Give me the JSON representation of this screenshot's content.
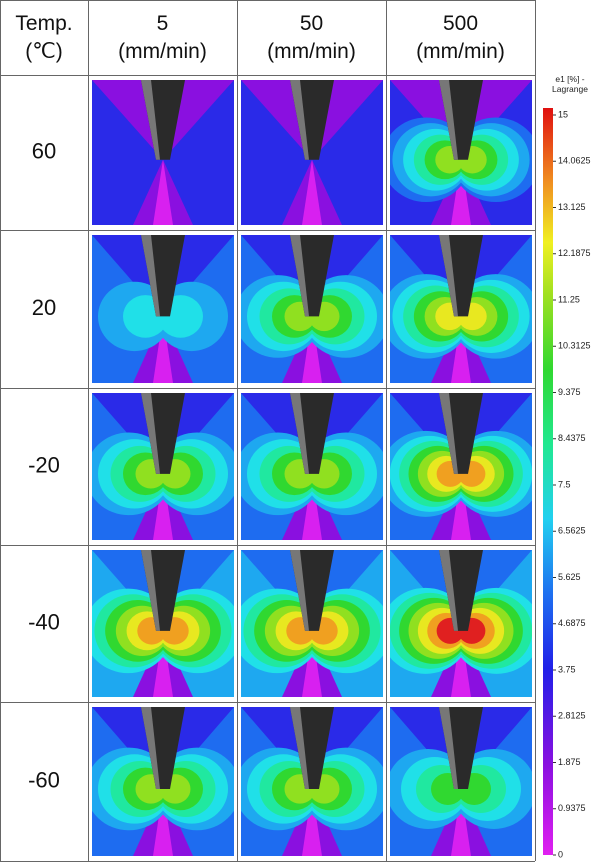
{
  "header": {
    "corner": [
      "Temp.",
      "(℃)"
    ],
    "columns": [
      [
        "5",
        "(mm/min)"
      ],
      [
        "50",
        "(mm/min)"
      ],
      [
        "500",
        "(mm/min)"
      ]
    ]
  },
  "rows": [
    "60",
    "20",
    "-20",
    "-40",
    "-60"
  ],
  "colorbar": {
    "title": [
      "e1 [%] -",
      "Lagrange"
    ],
    "labels": [
      "15",
      "14.0625",
      "13.125",
      "12.1875",
      "11.25",
      "10.3125",
      "9.375",
      "8.4375",
      "7.5",
      "6.5625",
      "5.625",
      "4.6875",
      "3.75",
      "2.8125",
      "1.875",
      "0.9375",
      "0"
    ]
  }
}
